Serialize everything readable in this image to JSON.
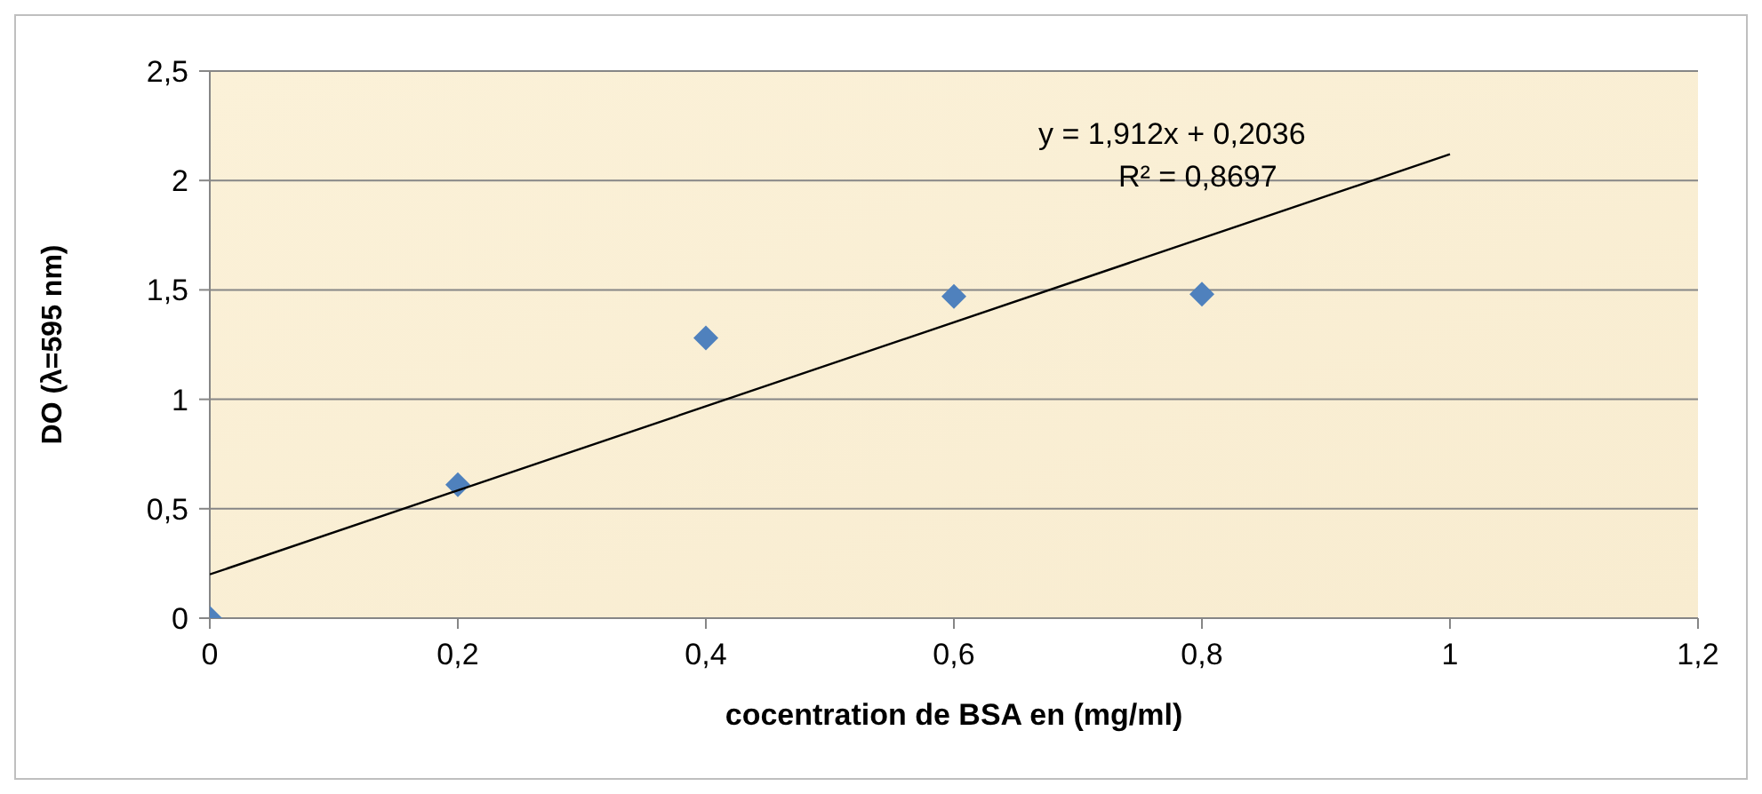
{
  "chart_data": {
    "type": "scatter",
    "xlabel": "cocentration de BSA en (mg/ml)",
    "ylabel": "DO (λ=595 nm)",
    "x": [
      0,
      0.2,
      0.4,
      0.6,
      0.8
    ],
    "series": [
      {
        "color": "#4f81bd",
        "marker": "diamond",
        "values": [
          0,
          0.61,
          1.28,
          1.47,
          1.48
        ]
      },
      {
        "type": "line",
        "color": "#000000",
        "marker": "none",
        "x": [
          0,
          1
        ],
        "values": [
          0.2,
          2.12
        ]
      }
    ],
    "xlim": [
      0,
      1.2
    ],
    "xticks": [
      0,
      {
        "value": 0.2,
        "label": "0,2"
      },
      {
        "value": 0.4,
        "label": "0,4"
      },
      {
        "value": 0.6,
        "label": "0,6"
      },
      {
        "value": 0.8,
        "label": "0,8"
      },
      1,
      {
        "value": 1.2,
        "label": "1,2"
      }
    ],
    "ylim": [
      0,
      2.5
    ],
    "yticks": [
      0,
      {
        "value": 0.5,
        "label": "0,5"
      },
      1,
      {
        "value": 1.5,
        "label": "1,5"
      },
      2,
      {
        "value": 2.5,
        "label": "2,5"
      }
    ],
    "grid": "y",
    "annotations": [
      "y = 1,912x + 0,2036",
      "R² = 0,8697"
    ]
  }
}
